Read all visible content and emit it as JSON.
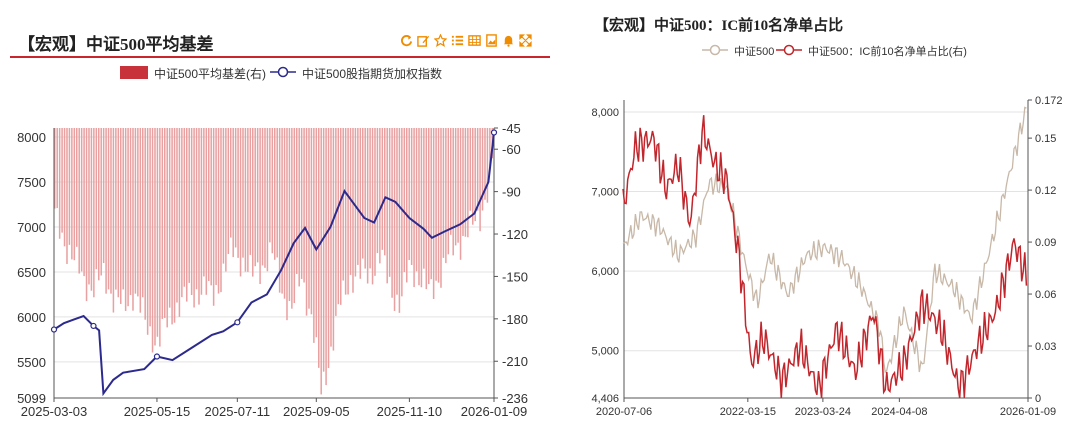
{
  "left_panel": {
    "title": "【宏观】中证500平均基差",
    "toolbar_icons": [
      "refresh-icon",
      "edit-icon",
      "star-icon",
      "list-icon",
      "table-icon",
      "image-icon",
      "bell-icon",
      "expand-icon"
    ],
    "colors": {
      "bar": "#c8323a",
      "bar_fill": "#e9a0a0",
      "line": "#2c2a8c",
      "accent": "#c8262c",
      "toolbar": "#f08c00"
    }
  },
  "right_panel": {
    "title": "【宏观】中证500：IC前10名净单占比",
    "colors": {
      "line1": "#c8b8a8",
      "line2": "#c0262c"
    }
  },
  "chart_data": [
    {
      "type": "bar+line",
      "title": "【宏观】中证500平均基差",
      "legend": [
        "中证500平均基差(右)",
        "中证500股指期货加权指数"
      ],
      "legend_position": "top",
      "x_ticks": [
        "2025-03-03",
        "2025-05-15",
        "2025-07-11",
        "2025-09-05",
        "2025-11-10",
        "2026-01-09"
      ],
      "y_left_ticks": [
        "8000",
        "7500",
        "7000",
        "6500",
        "6000",
        "5500",
        "5099"
      ],
      "y_left_range": [
        5099,
        8100
      ],
      "y_right_ticks": [
        "-45",
        "-60",
        "-90",
        "-120",
        "-150",
        "-180",
        "-210",
        "-236"
      ],
      "y_right_range": [
        -236,
        -45
      ],
      "index_series": {
        "name": "中证500股指期货加权指数",
        "x": [
          "2025-03-03",
          "2025-03-10",
          "2025-03-17",
          "2025-03-24",
          "2025-03-31",
          "2025-04-04",
          "2025-04-07",
          "2025-04-14",
          "2025-04-21",
          "2025-05-06",
          "2025-05-15",
          "2025-05-26",
          "2025-06-09",
          "2025-06-23",
          "2025-07-01",
          "2025-07-11",
          "2025-07-21",
          "2025-08-01",
          "2025-08-11",
          "2025-08-20",
          "2025-08-28",
          "2025-09-05",
          "2025-09-15",
          "2025-09-25",
          "2025-10-09",
          "2025-10-16",
          "2025-10-24",
          "2025-10-31",
          "2025-11-10",
          "2025-11-20",
          "2025-11-26",
          "2025-12-05",
          "2025-12-16",
          "2025-12-26",
          "2026-01-05",
          "2026-01-09"
        ],
        "values": [
          5860,
          5930,
          5970,
          6010,
          5900,
          5850,
          5150,
          5300,
          5380,
          5420,
          5560,
          5520,
          5660,
          5800,
          5840,
          5940,
          6160,
          6250,
          6520,
          6820,
          6990,
          6750,
          7000,
          7400,
          7100,
          7050,
          7330,
          7280,
          7100,
          6980,
          6880,
          6950,
          7030,
          7150,
          7500,
          8050
        ]
      },
      "basis_series": {
        "name": "中证500平均基差(右)",
        "x": [
          "2025-03-03",
          "2025-03-10",
          "2025-03-17",
          "2025-03-24",
          "2025-03-31",
          "2025-04-07",
          "2025-04-14",
          "2025-04-21",
          "2025-04-28",
          "2025-05-08",
          "2025-05-15",
          "2025-05-22",
          "2025-05-29",
          "2025-06-09",
          "2025-06-16",
          "2025-06-23",
          "2025-06-30",
          "2025-07-07",
          "2025-07-14",
          "2025-07-21",
          "2025-07-28",
          "2025-08-04",
          "2025-08-11",
          "2025-08-18",
          "2025-08-25",
          "2025-09-01",
          "2025-09-08",
          "2025-09-15",
          "2025-09-22",
          "2025-09-29",
          "2025-10-13",
          "2025-10-20",
          "2025-10-27",
          "2025-11-03",
          "2025-11-10",
          "2025-11-17",
          "2025-11-24",
          "2025-12-01",
          "2025-12-08",
          "2025-12-15",
          "2025-12-22",
          "2025-12-29",
          "2026-01-05",
          "2026-01-09"
        ],
        "values": [
          -108,
          -125,
          -140,
          -152,
          -160,
          -148,
          -166,
          -172,
          -160,
          -188,
          -196,
          -183,
          -170,
          -163,
          -158,
          -165,
          -148,
          -132,
          -138,
          -150,
          -142,
          -134,
          -160,
          -175,
          -150,
          -178,
          -233,
          -200,
          -168,
          -150,
          -148,
          -135,
          -158,
          -170,
          -143,
          -150,
          -163,
          -148,
          -135,
          -125,
          -118,
          -108,
          -85,
          -60
        ]
      }
    },
    {
      "type": "line",
      "title": "【宏观】中证500：IC前10名净单占比",
      "legend": [
        "中证500",
        "中证500：IC前10名净单占比(右)"
      ],
      "legend_position": "top",
      "x_ticks": [
        "2020-07-06",
        "2022-03-15",
        "2023-03-24",
        "2024-04-08",
        "2026-01-09"
      ],
      "y_left_ticks": [
        "8,000",
        "7,000",
        "6,000",
        "5,000",
        "4,406"
      ],
      "y_left_range": [
        4406,
        8150
      ],
      "y_right_ticks": [
        "0.172",
        "0.15",
        "0.12",
        "0.09",
        "0.06",
        "0.03",
        "0"
      ],
      "y_right_range": [
        0,
        0.172
      ],
      "index_series": {
        "name": "中证500",
        "x": [
          "2020-07",
          "2020-10",
          "2021-01",
          "2021-04",
          "2021-07",
          "2021-09",
          "2021-12",
          "2022-03",
          "2022-05",
          "2022-07",
          "2022-10",
          "2023-01",
          "2023-04",
          "2023-07",
          "2023-10",
          "2024-01",
          "2024-02",
          "2024-05",
          "2024-08",
          "2024-10",
          "2025-01",
          "2025-04",
          "2025-07",
          "2025-10",
          "2026-01"
        ],
        "values": [
          6300,
          6700,
          6550,
          6200,
          6450,
          7100,
          7050,
          6100,
          5600,
          6200,
          5700,
          6200,
          6300,
          6150,
          5800,
          5300,
          4700,
          5500,
          4750,
          6000,
          5800,
          5400,
          6250,
          7150,
          8050
        ]
      },
      "ratio_series": {
        "name": "中证500：IC前10名净单占比(右)",
        "x": [
          "2020-07",
          "2020-09",
          "2020-12",
          "2021-02",
          "2021-04",
          "2021-06",
          "2021-08",
          "2021-10",
          "2021-12",
          "2022-02",
          "2022-04",
          "2022-06",
          "2022-09",
          "2022-12",
          "2023-03",
          "2023-06",
          "2023-09",
          "2023-12",
          "2024-02",
          "2024-05",
          "2024-08",
          "2024-11",
          "2025-02",
          "2025-05",
          "2025-08",
          "2025-11",
          "2026-01"
        ],
        "values": [
          0.11,
          0.145,
          0.15,
          0.12,
          0.135,
          0.1,
          0.155,
          0.135,
          0.125,
          0.08,
          0.02,
          0.035,
          0.01,
          0.03,
          0.005,
          0.04,
          0.015,
          0.05,
          0.005,
          0.02,
          0.055,
          0.04,
          0.005,
          0.03,
          0.05,
          0.09,
          0.07
        ]
      }
    }
  ]
}
